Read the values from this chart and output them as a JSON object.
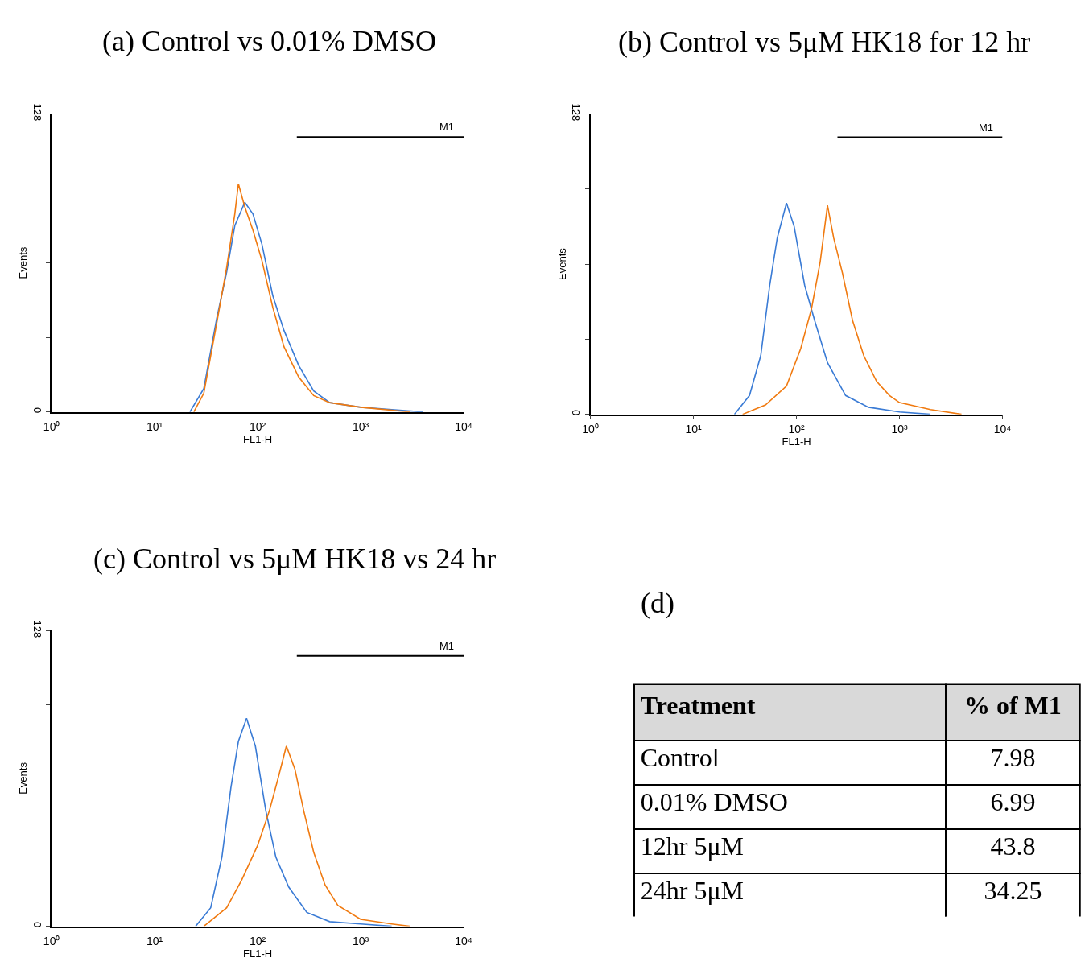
{
  "chart_data": [
    {
      "type": "line",
      "title": "(a) Control vs 0.01% DMSO",
      "xlabel": "FL1-H",
      "ylabel": "Events",
      "log": "x",
      "legend": false,
      "xlim": [
        1,
        10000
      ],
      "xticks": [
        {
          "value": 1,
          "label": "10⁰"
        },
        {
          "value": 10,
          "label": "10¹"
        },
        {
          "value": 100,
          "label": "10²"
        },
        {
          "value": 1000,
          "label": "10³"
        },
        {
          "value": 10000,
          "label": "10⁴"
        }
      ],
      "ylim": [
        0,
        128
      ],
      "yticks": [
        0,
        {
          "value": 32,
          "label": null
        },
        {
          "value": 64,
          "label": null
        },
        {
          "value": 96,
          "label": null
        },
        128
      ],
      "series": [
        {
          "color": "#3a7bd5",
          "x": [
            22,
            30,
            40,
            50,
            60,
            75,
            90,
            110,
            140,
            180,
            250,
            350,
            500,
            1000,
            2000,
            4000
          ],
          "values": [
            0,
            10,
            40,
            60,
            80,
            90,
            85,
            72,
            50,
            35,
            20,
            9,
            4,
            2,
            1,
            0
          ]
        },
        {
          "color": "#f07a10",
          "x": [
            24,
            30,
            40,
            50,
            60,
            65,
            75,
            90,
            110,
            140,
            180,
            250,
            350,
            500,
            1000,
            3000
          ],
          "values": [
            0,
            8,
            38,
            62,
            85,
            98,
            88,
            78,
            65,
            45,
            28,
            15,
            7,
            4,
            2,
            0
          ]
        },
        {
          "name": "M1",
          "color": "#000000",
          "x": [
            240,
            10000
          ],
          "values": [
            118,
            118
          ]
        }
      ]
    },
    {
      "type": "line",
      "title": "(b) Control vs 5μM HK18 for 12 hr",
      "xlabel": "FL1-H",
      "ylabel": "Events",
      "log": "x",
      "legend": false,
      "xlim": [
        1,
        10000
      ],
      "xticks": [
        {
          "value": 1,
          "label": "10⁰"
        },
        {
          "value": 10,
          "label": "10¹"
        },
        {
          "value": 100,
          "label": "10²"
        },
        {
          "value": 1000,
          "label": "10³"
        },
        {
          "value": 10000,
          "label": "10⁴"
        }
      ],
      "ylim": [
        0,
        128
      ],
      "yticks": [
        0,
        {
          "value": 32,
          "label": null
        },
        {
          "value": 64,
          "label": null
        },
        {
          "value": 96,
          "label": null
        },
        128
      ],
      "series": [
        {
          "color": "#3a7bd5",
          "x": [
            25,
            35,
            45,
            55,
            65,
            80,
            95,
            120,
            150,
            200,
            300,
            500,
            1000,
            2000
          ],
          "values": [
            0,
            8,
            25,
            55,
            75,
            90,
            80,
            55,
            40,
            22,
            8,
            3,
            1,
            0
          ]
        },
        {
          "color": "#f07a10",
          "x": [
            30,
            50,
            80,
            110,
            140,
            170,
            200,
            230,
            280,
            350,
            450,
            600,
            800,
            1000,
            2000,
            4000
          ],
          "values": [
            0,
            4,
            12,
            28,
            45,
            65,
            89,
            75,
            60,
            40,
            25,
            14,
            8,
            5,
            2,
            0
          ]
        },
        {
          "name": "M1",
          "color": "#000000",
          "x": [
            250,
            10000
          ],
          "values": [
            118,
            118
          ]
        }
      ]
    },
    {
      "type": "line",
      "title": "(c) Control vs 5μM HK18 vs 24 hr",
      "xlabel": "FL1-H",
      "ylabel": "Events",
      "log": "x",
      "legend": false,
      "xlim": [
        1,
        10000
      ],
      "xticks": [
        {
          "value": 1,
          "label": "10⁰"
        },
        {
          "value": 10,
          "label": "10¹"
        },
        {
          "value": 100,
          "label": "10²"
        },
        {
          "value": 1000,
          "label": "10³"
        },
        {
          "value": 10000,
          "label": "10⁴"
        }
      ],
      "ylim": [
        0,
        128
      ],
      "yticks": [
        0,
        {
          "value": 32,
          "label": null
        },
        {
          "value": 64,
          "label": null
        },
        {
          "value": 96,
          "label": null
        },
        128
      ],
      "series": [
        {
          "color": "#3a7bd5",
          "x": [
            25,
            35,
            45,
            55,
            65,
            78,
            95,
            120,
            150,
            200,
            300,
            500,
            1000,
            2000
          ],
          "values": [
            0,
            8,
            30,
            60,
            80,
            90,
            78,
            50,
            30,
            17,
            6,
            2,
            1,
            0
          ]
        },
        {
          "color": "#f07a10",
          "x": [
            30,
            50,
            70,
            100,
            130,
            160,
            190,
            230,
            280,
            350,
            450,
            600,
            1000,
            2000,
            3000
          ],
          "values": [
            0,
            8,
            20,
            35,
            50,
            65,
            78,
            68,
            50,
            32,
            18,
            9,
            3,
            1,
            0
          ]
        },
        {
          "name": "M1",
          "color": "#000000",
          "x": [
            240,
            10000
          ],
          "values": [
            117,
            117
          ]
        }
      ]
    },
    {
      "type": "other",
      "title": "(d)",
      "annotations": [
        "Treatment",
        "% of M1"
      ],
      "categories": [
        "Control",
        "0.01% DMSO",
        "12hr 5μM",
        "24hr 5μM"
      ],
      "value_labels": [
        "7.98",
        "6.99",
        "43.8",
        "34.25"
      ]
    }
  ]
}
